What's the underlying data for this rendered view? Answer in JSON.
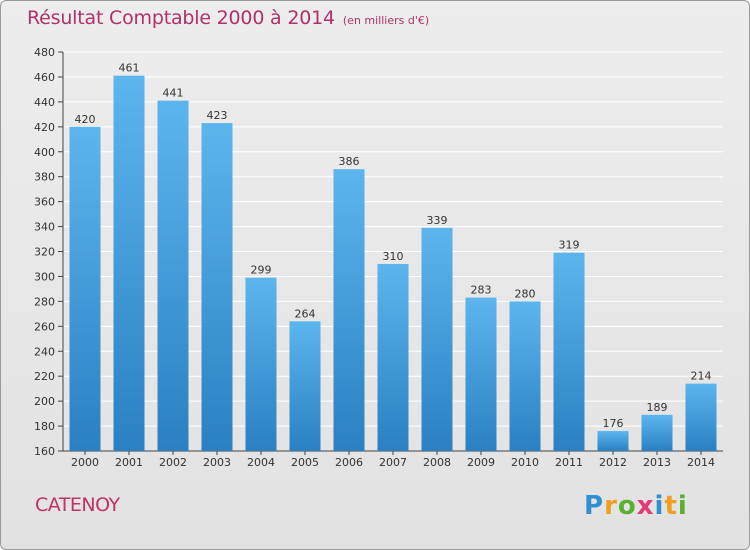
{
  "title": "Résultat Comptable 2000 à 2014",
  "unit": "(en milliers d'€)",
  "place": "CATENOY",
  "brand": {
    "letters": [
      "P",
      "r",
      "o",
      "x",
      "i",
      "t",
      "i"
    ],
    "colors": [
      "#2f8fd0",
      "#f0a020",
      "#5bb030",
      "#e53a7a",
      "#2f8fd0",
      "#f0a020",
      "#5bb030"
    ]
  },
  "colors": {
    "bar_light": "#5db5ee",
    "bar_dark": "#2a80c2",
    "title": "#b0306a",
    "grid": "#ffffff"
  },
  "chart_data": {
    "type": "bar",
    "title": "Résultat Comptable 2000 à 2014",
    "subtitle": "(en milliers d'€)",
    "categories": [
      "2000",
      "2001",
      "2002",
      "2003",
      "2004",
      "2005",
      "2006",
      "2007",
      "2008",
      "2009",
      "2010",
      "2011",
      "2012",
      "2013",
      "2014"
    ],
    "values": [
      420,
      461,
      441,
      423,
      299,
      264,
      386,
      310,
      339,
      283,
      280,
      319,
      176,
      189,
      214
    ],
    "ylim": [
      160,
      480
    ],
    "yticks": [
      160,
      180,
      200,
      220,
      240,
      260,
      280,
      300,
      320,
      340,
      360,
      380,
      400,
      420,
      440,
      460,
      480
    ],
    "grid": true,
    "xlabel": "",
    "ylabel": ""
  }
}
